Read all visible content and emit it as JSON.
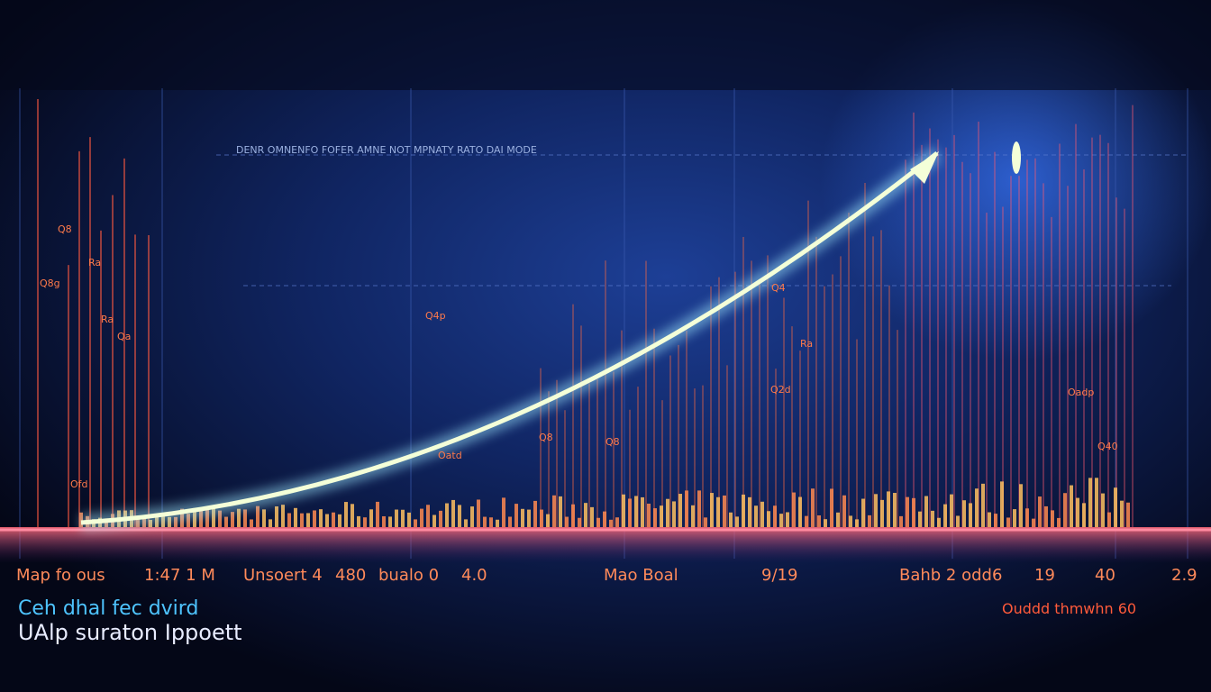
{
  "header": {
    "caption": "DENR OMNENFO FOFER AMNE NOT MPNATY RATO DAI MODE"
  },
  "chart_labels": [
    "Q8",
    "Ra",
    "Q8g",
    "Ra",
    "Qa",
    "Q4p",
    "Ofd",
    "Oatd",
    "Q8",
    "Q8",
    "Q4",
    "Ra",
    "Q2d",
    "Oadp",
    "Q40"
  ],
  "axis_labels": [
    "Map fo ous",
    "1:47 1 M",
    "Unsoert 4",
    "480",
    "bualo 0",
    "4.0",
    "Mao Boal",
    "9/19",
    "Bahb 2 odd6",
    "19",
    "40",
    "2.9"
  ],
  "footer": {
    "line1": "Ceh dhal fec dvird",
    "line2": "UAlp suraton Ippoett",
    "note": "Ouddd thmwhn 60"
  }
}
